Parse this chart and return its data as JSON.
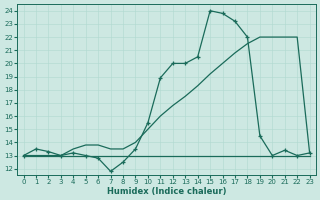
{
  "bg_color": "#cde8e2",
  "line_color": "#1a6b5a",
  "xlabel": "Humidex (Indice chaleur)",
  "xlim": [
    -0.5,
    23.5
  ],
  "ylim": [
    11.5,
    24.5
  ],
  "xticks": [
    0,
    1,
    2,
    3,
    4,
    5,
    6,
    7,
    8,
    9,
    10,
    11,
    12,
    13,
    14,
    15,
    16,
    17,
    18,
    19,
    20,
    21,
    22,
    23
  ],
  "yticks": [
    12,
    13,
    14,
    15,
    16,
    17,
    18,
    19,
    20,
    21,
    22,
    23,
    24
  ],
  "curve_x": [
    0,
    1,
    2,
    3,
    4,
    5,
    6,
    7,
    8,
    9,
    10,
    11,
    12,
    13,
    14,
    15,
    16,
    17,
    18,
    19,
    20,
    21,
    22,
    23
  ],
  "curve_y": [
    13.0,
    13.5,
    13.3,
    13.0,
    13.2,
    13.0,
    12.8,
    11.8,
    12.5,
    13.5,
    15.5,
    18.9,
    20.0,
    20.0,
    20.5,
    24.0,
    23.8,
    23.2,
    22.0,
    14.5,
    13.0,
    13.4,
    13.0,
    13.2
  ],
  "flat_x": [
    0,
    1,
    2,
    3,
    4,
    5,
    6,
    7,
    8,
    9,
    10,
    11,
    12,
    13,
    14,
    15,
    16,
    17,
    18,
    19,
    20,
    21,
    22,
    23
  ],
  "flat_y": [
    13.0,
    13.0,
    13.0,
    13.0,
    13.0,
    13.0,
    13.0,
    13.0,
    13.0,
    13.0,
    13.0,
    13.0,
    13.0,
    13.0,
    13.0,
    13.0,
    13.0,
    13.0,
    13.0,
    13.0,
    13.0,
    13.0,
    13.0,
    13.0
  ],
  "diag_x": [
    0,
    1,
    2,
    3,
    4,
    5,
    6,
    7,
    8,
    9,
    10,
    11,
    12,
    13,
    14,
    15,
    16,
    17,
    18,
    19,
    20,
    21,
    22,
    23
  ],
  "diag_y": [
    13.0,
    13.0,
    13.0,
    13.0,
    13.5,
    13.8,
    13.8,
    13.5,
    13.5,
    14.0,
    15.0,
    16.0,
    16.8,
    17.5,
    18.3,
    19.2,
    20.0,
    20.8,
    21.5,
    22.0,
    22.0,
    22.0,
    22.0,
    13.2
  ]
}
